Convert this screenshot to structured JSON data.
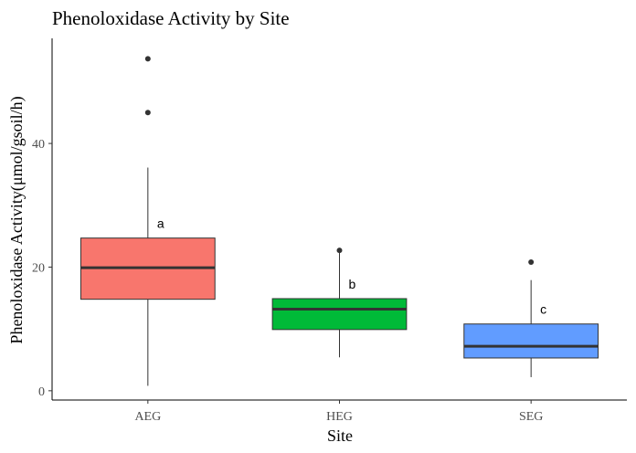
{
  "chart_data": {
    "type": "boxplot",
    "title": "Phenoloxidase Activity by Site",
    "xlabel": "Site",
    "ylabel": "Phenoloxidase Activity(μmol/gsoil/h)",
    "ylim": [
      -1.5,
      57
    ],
    "yticks": [
      0,
      20,
      40
    ],
    "grid": false,
    "categories": [
      "AEG",
      "HEG",
      "SEG"
    ],
    "boxes": [
      {
        "category": "AEG",
        "color": "#F8766D",
        "whisker_low": 0.8,
        "q1": 14.8,
        "median": 19.9,
        "q3": 24.7,
        "whisker_high": 36.1,
        "outliers": [
          45.0,
          53.7
        ],
        "letter": "a"
      },
      {
        "category": "HEG",
        "color": "#00BA38",
        "whisker_low": 5.4,
        "q1": 9.9,
        "median": 13.2,
        "q3": 14.9,
        "whisker_high": 22.7,
        "outliers": [
          22.7
        ],
        "letter": "b"
      },
      {
        "category": "SEG",
        "color": "#619CFF",
        "whisker_low": 2.2,
        "q1": 5.3,
        "median": 7.2,
        "q3": 10.8,
        "whisker_high": 17.9,
        "outliers": [
          20.8
        ],
        "letter": "c"
      }
    ]
  }
}
